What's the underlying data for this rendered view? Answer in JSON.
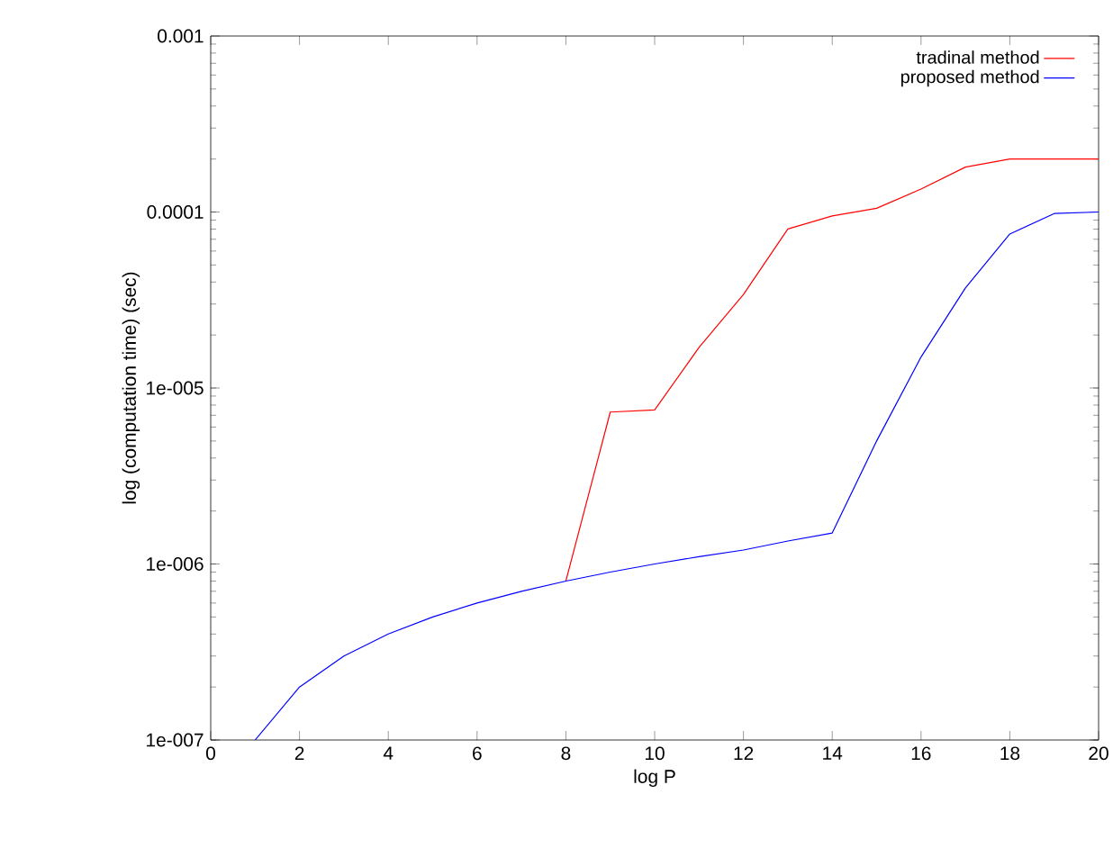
{
  "chart_data": {
    "type": "line",
    "xlabel": "log P",
    "ylabel": "log (computation time) (sec)",
    "log": "y",
    "legend": "top right",
    "xlim": [
      0,
      20
    ],
    "xticks": [
      0,
      2,
      4,
      6,
      8,
      10,
      12,
      14,
      16,
      18,
      20
    ],
    "ylim": [
      1e-07,
      0.001
    ],
    "yticks": [
      {
        "value": 1e-07,
        "label": "1e-007"
      },
      {
        "value": 1e-06,
        "label": "1e-006"
      },
      {
        "value": 1e-05,
        "label": "1e-005"
      },
      {
        "value": 0.0001,
        "label": "0.0001"
      },
      {
        "value": 0.001,
        "label": "0.001"
      }
    ],
    "series": [
      {
        "name": "tradinal method",
        "color": "#ff0000",
        "x": [
          8,
          9,
          10,
          11,
          12,
          13,
          14,
          15,
          16,
          17,
          18,
          19,
          20
        ],
        "values": [
          8e-07,
          7.3e-06,
          7.5e-06,
          1.7e-05,
          3.4e-05,
          8e-05,
          9.5e-05,
          0.000105,
          0.000135,
          0.00018,
          0.0002,
          0.0002,
          0.0002
        ]
      },
      {
        "name": "proposed method",
        "color": "#0000ff",
        "x": [
          1,
          2,
          3,
          4,
          5,
          6,
          7,
          8,
          9,
          10,
          11,
          12,
          13,
          14,
          15,
          16,
          17,
          18,
          19,
          20
        ],
        "values": [
          1e-07,
          2e-07,
          3e-07,
          4e-07,
          5e-07,
          6e-07,
          7e-07,
          8e-07,
          9e-07,
          1e-06,
          1.1e-06,
          1.2e-06,
          1.35e-06,
          1.5e-06,
          5e-06,
          1.5e-05,
          3.7e-05,
          7.5e-05,
          9.8e-05,
          0.0001
        ]
      }
    ]
  }
}
